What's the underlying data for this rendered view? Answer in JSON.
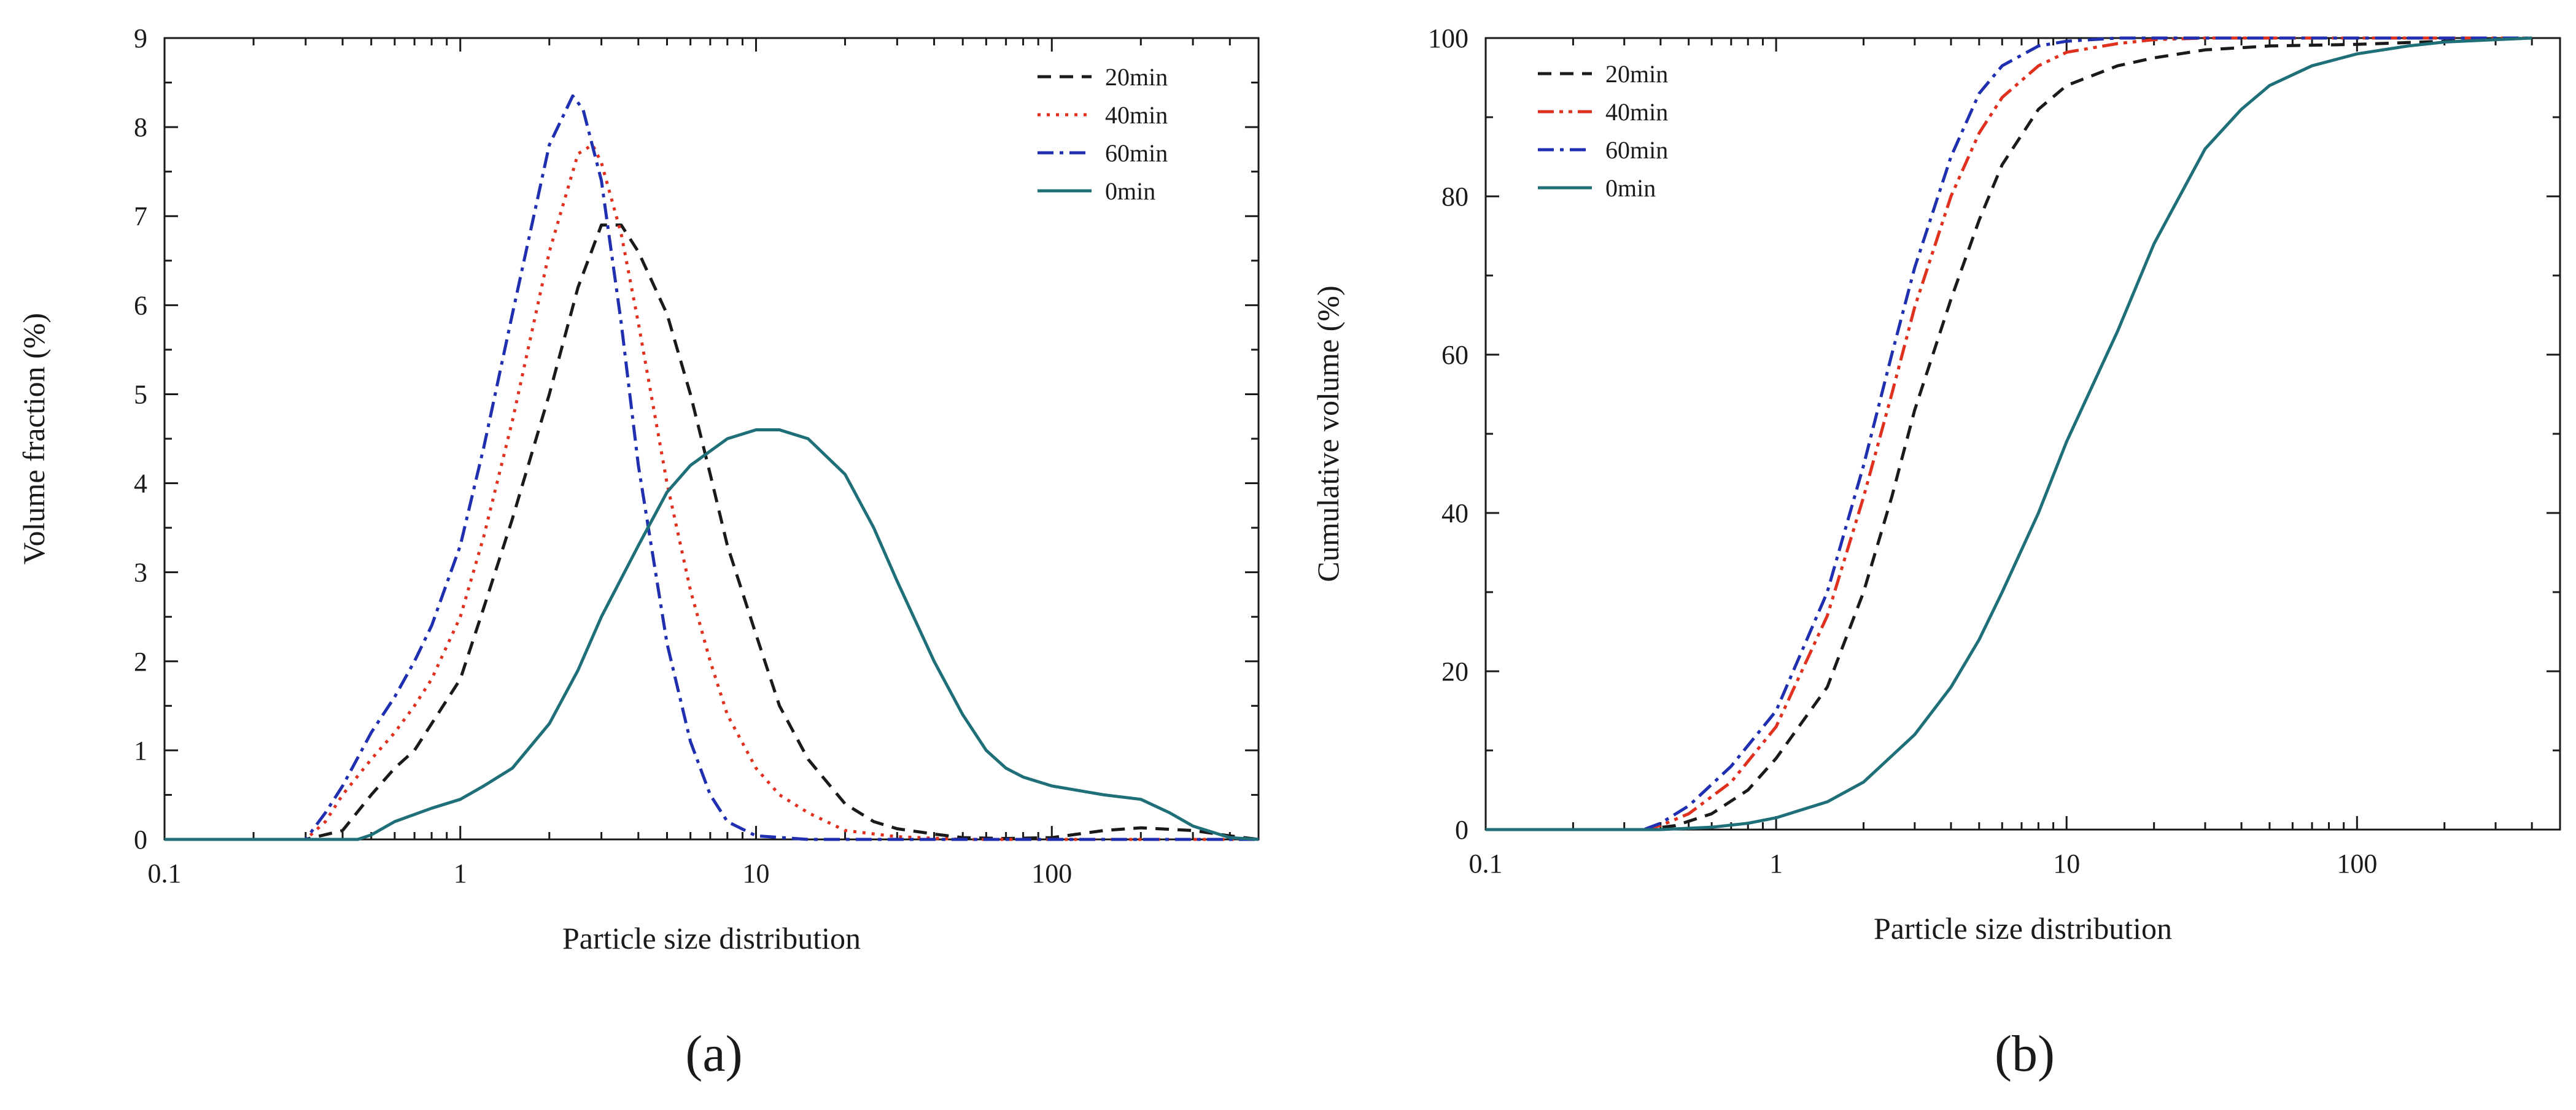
{
  "chart_data": [
    {
      "panel_label": "(a)",
      "type": "line",
      "xlabel": "Particle size distribution",
      "ylabel": "Volume fraction (%)",
      "xscale": "log",
      "xlim": [
        0.1,
        500
      ],
      "ylim": [
        0,
        9
      ],
      "x_ticks": [
        0.1,
        1,
        10,
        100
      ],
      "x_tick_labels": [
        "0.1",
        "1",
        "10",
        "100"
      ],
      "y_ticks": [
        0,
        1,
        2,
        3,
        4,
        5,
        6,
        7,
        8,
        9
      ],
      "y_tick_labels": [
        "0",
        "1",
        "2",
        "3",
        "4",
        "5",
        "6",
        "7",
        "8",
        "9"
      ],
      "legend_position": "top-right",
      "series": [
        {
          "name": "20min",
          "color": "#1a1a1a",
          "dash": "dashed",
          "points": [
            [
              0.1,
              0
            ],
            [
              0.3,
              0
            ],
            [
              0.4,
              0.1
            ],
            [
              0.5,
              0.5
            ],
            [
              0.6,
              0.8
            ],
            [
              0.7,
              1.0
            ],
            [
              0.8,
              1.3
            ],
            [
              1,
              1.8
            ],
            [
              1.2,
              2.6
            ],
            [
              1.5,
              3.6
            ],
            [
              2,
              5.0
            ],
            [
              2.5,
              6.2
            ],
            [
              3,
              6.9
            ],
            [
              3.5,
              6.9
            ],
            [
              4,
              6.6
            ],
            [
              5,
              5.9
            ],
            [
              6,
              5.0
            ],
            [
              7,
              4.1
            ],
            [
              8,
              3.3
            ],
            [
              10,
              2.3
            ],
            [
              12,
              1.5
            ],
            [
              15,
              0.9
            ],
            [
              20,
              0.4
            ],
            [
              25,
              0.2
            ],
            [
              30,
              0.12
            ],
            [
              40,
              0.06
            ],
            [
              50,
              0.02
            ],
            [
              70,
              0.01
            ],
            [
              100,
              0.02
            ],
            [
              150,
              0.1
            ],
            [
              200,
              0.13
            ],
            [
              300,
              0.1
            ],
            [
              400,
              0.04
            ],
            [
              500,
              0
            ]
          ]
        },
        {
          "name": "40min",
          "color": "#e0301e",
          "dash": "dotted",
          "points": [
            [
              0.1,
              0
            ],
            [
              0.3,
              0
            ],
            [
              0.35,
              0.2
            ],
            [
              0.4,
              0.5
            ],
            [
              0.5,
              0.9
            ],
            [
              0.6,
              1.2
            ],
            [
              0.7,
              1.5
            ],
            [
              0.8,
              1.8
            ],
            [
              1,
              2.5
            ],
            [
              1.2,
              3.4
            ],
            [
              1.5,
              4.7
            ],
            [
              2,
              6.6
            ],
            [
              2.5,
              7.7
            ],
            [
              2.8,
              7.8
            ],
            [
              3,
              7.6
            ],
            [
              3.5,
              6.8
            ],
            [
              4,
              5.8
            ],
            [
              5,
              4.0
            ],
            [
              6,
              2.8
            ],
            [
              7,
              2.0
            ],
            [
              8,
              1.4
            ],
            [
              10,
              0.8
            ],
            [
              12,
              0.5
            ],
            [
              15,
              0.3
            ],
            [
              20,
              0.1
            ],
            [
              30,
              0.03
            ],
            [
              50,
              0
            ],
            [
              500,
              0
            ]
          ]
        },
        {
          "name": "60min",
          "color": "#1f2fb0",
          "dash": "dashdot",
          "points": [
            [
              0.1,
              0
            ],
            [
              0.3,
              0
            ],
            [
              0.35,
              0.3
            ],
            [
              0.4,
              0.6
            ],
            [
              0.5,
              1.2
            ],
            [
              0.6,
              1.6
            ],
            [
              0.7,
              2.0
            ],
            [
              0.8,
              2.4
            ],
            [
              1,
              3.3
            ],
            [
              1.2,
              4.4
            ],
            [
              1.5,
              5.9
            ],
            [
              2,
              7.8
            ],
            [
              2.4,
              8.35
            ],
            [
              2.6,
              8.2
            ],
            [
              3,
              7.4
            ],
            [
              3.5,
              5.8
            ],
            [
              4,
              4.2
            ],
            [
              5,
              2.2
            ],
            [
              6,
              1.1
            ],
            [
              7,
              0.5
            ],
            [
              8,
              0.2
            ],
            [
              10,
              0.04
            ],
            [
              15,
              0
            ],
            [
              500,
              0
            ]
          ]
        },
        {
          "name": "0min",
          "color": "#1f6f78",
          "dash": "solid",
          "points": [
            [
              0.1,
              0
            ],
            [
              0.45,
              0
            ],
            [
              0.5,
              0.05
            ],
            [
              0.6,
              0.2
            ],
            [
              0.8,
              0.35
            ],
            [
              1,
              0.45
            ],
            [
              1.2,
              0.6
            ],
            [
              1.5,
              0.8
            ],
            [
              2,
              1.3
            ],
            [
              2.5,
              1.9
            ],
            [
              3,
              2.5
            ],
            [
              4,
              3.3
            ],
            [
              5,
              3.9
            ],
            [
              6,
              4.2
            ],
            [
              8,
              4.5
            ],
            [
              10,
              4.6
            ],
            [
              12,
              4.6
            ],
            [
              15,
              4.5
            ],
            [
              20,
              4.1
            ],
            [
              25,
              3.5
            ],
            [
              30,
              2.9
            ],
            [
              40,
              2.0
            ],
            [
              50,
              1.4
            ],
            [
              60,
              1.0
            ],
            [
              70,
              0.8
            ],
            [
              80,
              0.7
            ],
            [
              100,
              0.6
            ],
            [
              150,
              0.5
            ],
            [
              200,
              0.45
            ],
            [
              250,
              0.3
            ],
            [
              300,
              0.15
            ],
            [
              400,
              0.02
            ],
            [
              500,
              0
            ]
          ]
        }
      ]
    },
    {
      "panel_label": "(b)",
      "type": "line",
      "xlabel": "Particle size distribution",
      "ylabel": "Cumulative volume (%)",
      "xscale": "log",
      "xlim": [
        0.1,
        500
      ],
      "ylim": [
        0,
        100
      ],
      "x_ticks": [
        0.1,
        1,
        10,
        100
      ],
      "x_tick_labels": [
        "0.1",
        "1",
        "10",
        "100"
      ],
      "y_ticks": [
        0,
        20,
        40,
        60,
        80,
        100
      ],
      "y_tick_labels": [
        "0",
        "20",
        "40",
        "60",
        "80",
        "100"
      ],
      "legend_position": "top-left",
      "series": [
        {
          "name": "20min",
          "color": "#1a1a1a",
          "dash": "dashed",
          "points": [
            [
              0.1,
              0
            ],
            [
              0.35,
              0
            ],
            [
              0.45,
              0.5
            ],
            [
              0.6,
              2
            ],
            [
              0.8,
              5
            ],
            [
              1,
              9
            ],
            [
              1.5,
              18
            ],
            [
              2,
              30
            ],
            [
              2.5,
              42
            ],
            [
              3,
              53
            ],
            [
              4,
              67
            ],
            [
              5,
              77
            ],
            [
              6,
              84
            ],
            [
              8,
              91
            ],
            [
              10,
              94
            ],
            [
              15,
              96.5
            ],
            [
              20,
              97.5
            ],
            [
              30,
              98.5
            ],
            [
              50,
              99
            ],
            [
              100,
              99.2
            ],
            [
              200,
              99.6
            ],
            [
              400,
              100
            ]
          ]
        },
        {
          "name": "40min",
          "color": "#e0301e",
          "dash": "dashdotdot",
          "points": [
            [
              0.1,
              0
            ],
            [
              0.35,
              0
            ],
            [
              0.4,
              0.5
            ],
            [
              0.5,
              2
            ],
            [
              0.7,
              6
            ],
            [
              1,
              13
            ],
            [
              1.5,
              27
            ],
            [
              2,
              42
            ],
            [
              2.5,
              55
            ],
            [
              3,
              66
            ],
            [
              4,
              80
            ],
            [
              5,
              88
            ],
            [
              6,
              92.5
            ],
            [
              8,
              96.5
            ],
            [
              10,
              98.2
            ],
            [
              15,
              99.3
            ],
            [
              20,
              99.8
            ],
            [
              30,
              100
            ],
            [
              400,
              100
            ]
          ]
        },
        {
          "name": "60min",
          "color": "#1f2fb0",
          "dash": "dashdot",
          "points": [
            [
              0.1,
              0
            ],
            [
              0.35,
              0
            ],
            [
              0.4,
              0.8
            ],
            [
              0.5,
              3
            ],
            [
              0.7,
              8
            ],
            [
              1,
              15
            ],
            [
              1.5,
              30
            ],
            [
              2,
              46
            ],
            [
              2.5,
              60
            ],
            [
              3,
              71
            ],
            [
              4,
              85
            ],
            [
              5,
              93
            ],
            [
              6,
              96.5
            ],
            [
              8,
              99
            ],
            [
              10,
              99.6
            ],
            [
              15,
              100
            ],
            [
              400,
              100
            ]
          ]
        },
        {
          "name": "0min",
          "color": "#1f6f78",
          "dash": "solid",
          "points": [
            [
              0.1,
              0
            ],
            [
              0.4,
              0
            ],
            [
              0.6,
              0.3
            ],
            [
              0.8,
              0.8
            ],
            [
              1,
              1.5
            ],
            [
              1.5,
              3.5
            ],
            [
              2,
              6
            ],
            [
              3,
              12
            ],
            [
              4,
              18
            ],
            [
              5,
              24
            ],
            [
              6,
              30
            ],
            [
              8,
              40
            ],
            [
              10,
              49
            ],
            [
              15,
              63
            ],
            [
              20,
              74
            ],
            [
              30,
              86
            ],
            [
              40,
              91
            ],
            [
              50,
              94
            ],
            [
              70,
              96.5
            ],
            [
              100,
              98
            ],
            [
              150,
              99
            ],
            [
              200,
              99.5
            ],
            [
              300,
              99.8
            ],
            [
              400,
              100
            ]
          ]
        }
      ]
    }
  ]
}
